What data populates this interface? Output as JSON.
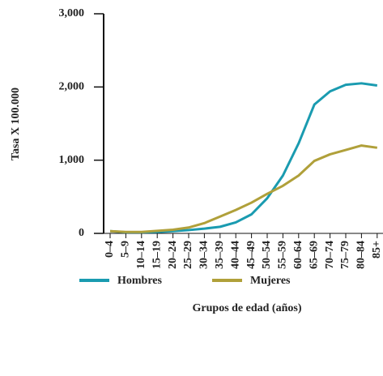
{
  "chart_data": {
    "type": "line",
    "y_label": "Tasa X 100.000",
    "x_label": "Grupos de edad (años)",
    "categories": [
      "0–4",
      "5–9",
      "10–14",
      "15–19",
      "20–24",
      "25–29",
      "30–34",
      "35–39",
      "40–44",
      "45–49",
      "50–54",
      "55–59",
      "60–64",
      "65–69",
      "70–74",
      "75–79",
      "80–84",
      "85+"
    ],
    "series": [
      {
        "name": "Hombres",
        "color": "#1a9bb0",
        "values": [
          30,
          15,
          15,
          20,
          30,
          45,
          65,
          90,
          150,
          260,
          480,
          790,
          1230,
          1760,
          1940,
          2030,
          2050,
          2020
        ]
      },
      {
        "name": "Mujeres",
        "color": "#b0a03a",
        "values": [
          30,
          20,
          20,
          35,
          50,
          80,
          140,
          230,
          320,
          420,
          540,
          650,
          790,
          990,
          1080,
          1140,
          1200,
          1170
        ]
      }
    ],
    "ylim": [
      0,
      3000
    ],
    "yticks": [
      0,
      {
        "value": 1000,
        "label": "1,000"
      },
      {
        "value": 2000,
        "label": "2,000"
      },
      {
        "value": 3000,
        "label": "3,000"
      }
    ],
    "grid": false,
    "legend": "bottom"
  }
}
